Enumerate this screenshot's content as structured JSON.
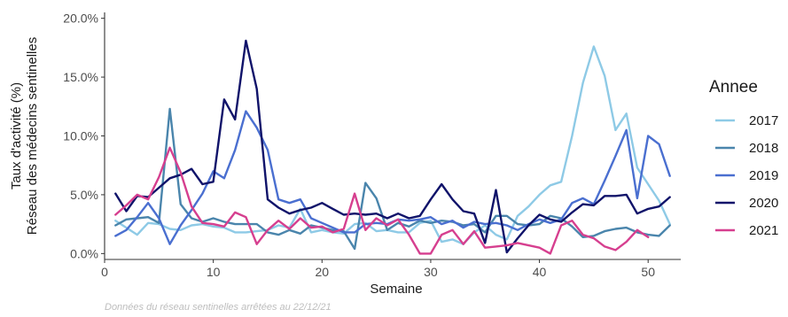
{
  "chart_data": {
    "type": "line",
    "xlabel": "Semaine",
    "ylabel_lines": [
      "Taux d'activité (%)",
      "Réseau des médecins sentinelles"
    ],
    "xlim": [
      0,
      53
    ],
    "ylim": [
      -0.5,
      20.5
    ],
    "x_ticks": [
      0,
      10,
      20,
      30,
      40,
      50
    ],
    "y_ticks": [
      0,
      5,
      10,
      15,
      20
    ],
    "y_tick_labels": [
      "0.0%",
      "5.0%",
      "10.0%",
      "15.0%",
      "20.0%"
    ],
    "legend_title": "Annee",
    "legend_position": "right",
    "grid": false,
    "series": [
      {
        "name": "2017",
        "color": "#8ecae6",
        "values": [
          2.8,
          2.2,
          1.6,
          2.6,
          2.5,
          2.1,
          2.0,
          2.4,
          2.5,
          2.3,
          2.2,
          1.8,
          1.8,
          1.9,
          2.0,
          2.4,
          2.2,
          3.8,
          1.8,
          2.0,
          1.8,
          1.7,
          2.5,
          2.6,
          1.9,
          2.0,
          1.8,
          1.8,
          2.6,
          2.8,
          1.0,
          1.2,
          0.8,
          1.8,
          2.4,
          1.6,
          1.2,
          3.2,
          4.0,
          5.0,
          5.8,
          6.1,
          10.0,
          14.5,
          17.6,
          15.1,
          10.5,
          11.9,
          7.3,
          5.9,
          4.5,
          2.5
        ]
      },
      {
        "name": "2018",
        "color": "#4a85ac",
        "values": [
          2.4,
          2.9,
          3.0,
          3.1,
          2.6,
          12.3,
          4.2,
          3.0,
          2.7,
          3.0,
          2.7,
          2.5,
          2.5,
          2.5,
          1.8,
          1.6,
          2.0,
          1.7,
          2.4,
          2.2,
          2.0,
          1.9,
          0.4,
          6.0,
          4.7,
          2.0,
          2.6,
          2.3,
          2.8,
          2.6,
          2.8,
          2.7,
          2.4,
          2.5,
          1.8,
          3.2,
          3.2,
          2.5,
          2.4,
          2.5,
          3.2,
          3.0,
          2.3,
          1.4,
          1.5,
          1.9,
          2.1,
          2.2,
          1.8,
          1.6,
          1.5,
          2.4
        ]
      },
      {
        "name": "2019",
        "color": "#4a6fd0",
        "values": [
          1.5,
          2.0,
          3.1,
          4.3,
          3.0,
          0.8,
          2.4,
          3.7,
          5.1,
          7.0,
          6.4,
          8.8,
          12.1,
          10.7,
          8.8,
          4.6,
          4.3,
          4.6,
          3.0,
          2.6,
          2.2,
          1.8,
          1.8,
          2.5,
          2.6,
          2.5,
          2.9,
          2.8,
          2.9,
          3.1,
          2.5,
          2.8,
          2.2,
          2.7,
          2.5,
          2.6,
          2.4,
          2.0,
          2.5,
          2.9,
          2.6,
          2.9,
          4.3,
          4.7,
          4.2,
          6.2,
          8.3,
          10.5,
          4.7,
          10.0,
          9.3,
          6.6
        ]
      },
      {
        "name": "2020",
        "color": "#10136a",
        "values": [
          5.1,
          3.6,
          4.9,
          4.8,
          5.6,
          6.4,
          6.7,
          7.2,
          5.9,
          6.1,
          13.1,
          11.4,
          18.1,
          14.0,
          4.6,
          3.9,
          3.4,
          3.7,
          3.9,
          4.3,
          3.8,
          3.3,
          3.4,
          3.3,
          3.4,
          3.0,
          3.4,
          3.0,
          3.2,
          4.6,
          5.9,
          4.6,
          3.6,
          3.4,
          0.9,
          5.4,
          0.1,
          1.3,
          2.4,
          3.3,
          2.9,
          2.7,
          3.5,
          4.2,
          4.1,
          4.9,
          4.9,
          5.0,
          3.4,
          3.8,
          4.0,
          4.8
        ]
      },
      {
        "name": "2021",
        "color": "#d63f8f",
        "values": [
          3.3,
          4.1,
          5.0,
          4.6,
          6.5,
          9.0,
          6.9,
          4.0,
          2.6,
          2.5,
          2.3,
          3.5,
          3.1,
          0.8,
          2.0,
          2.8,
          2.1,
          3.0,
          2.2,
          2.3,
          1.8,
          2.1,
          5.1,
          2.0,
          3.0,
          2.4,
          2.9,
          1.6,
          0.0,
          0.0,
          1.6,
          2.0,
          0.8,
          1.9,
          0.5,
          0.6,
          0.7,
          0.9,
          0.7,
          0.5,
          0.0,
          2.4,
          2.8,
          1.6,
          1.3,
          0.6,
          0.3,
          1.0,
          2.0,
          1.4
        ]
      }
    ]
  },
  "caption": "Données du réseau sentinelles arrêtées au  22/12/21"
}
